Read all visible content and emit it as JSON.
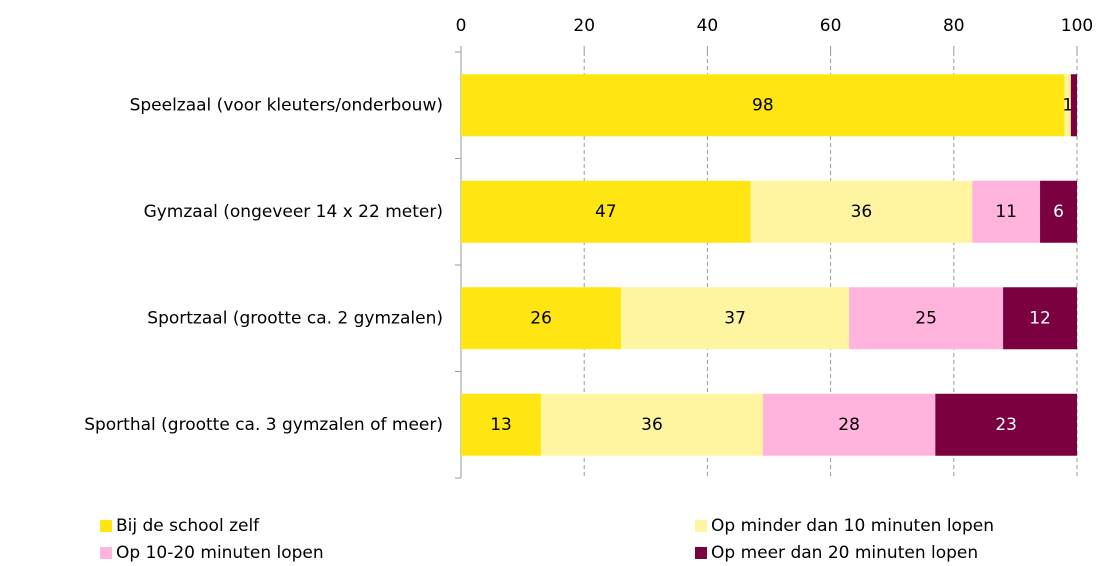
{
  "chart_data": {
    "type": "stacked_bar_horizontal",
    "categories": [
      "Speelzaal (voor kleuters/onderbouw)",
      "Gymzaal (ongeveer 14 x 22 meter)",
      "Sportzaal (grootte ca. 2 gymzalen)",
      "Sporthal (grootte ca. 3 gymzalen of meer)"
    ],
    "series": [
      {
        "name": "Bij de school zelf",
        "color": "#FFE512",
        "label_color": "#000000",
        "values": [
          98,
          47,
          26,
          13
        ],
        "value_labels": [
          "98",
          "47",
          "26",
          "13"
        ]
      },
      {
        "name": "Op minder dan 10 minuten lopen",
        "color": "#FFF5A0",
        "label_color": "#000000",
        "values": [
          1,
          36,
          37,
          36
        ],
        "value_labels": [
          "1",
          "36",
          "37",
          "36"
        ]
      },
      {
        "name": "Op 10-20 minuten lopen",
        "color": "#FFB3DD",
        "label_color": "#000000",
        "values": [
          0,
          11,
          25,
          28
        ],
        "value_labels": [
          null,
          "11",
          "25",
          "28"
        ]
      },
      {
        "name": "Op meer dan 20 minuten lopen",
        "color": "#7A0040",
        "label_color": "#FFFFFF",
        "values": [
          1,
          6,
          12,
          23
        ],
        "value_labels": [
          null,
          "6",
          "12",
          "23"
        ]
      }
    ],
    "xlim": [
      0,
      100
    ],
    "xticks": [
      0,
      20,
      40,
      60,
      80,
      100
    ],
    "grid": true,
    "legend": "bottom"
  }
}
